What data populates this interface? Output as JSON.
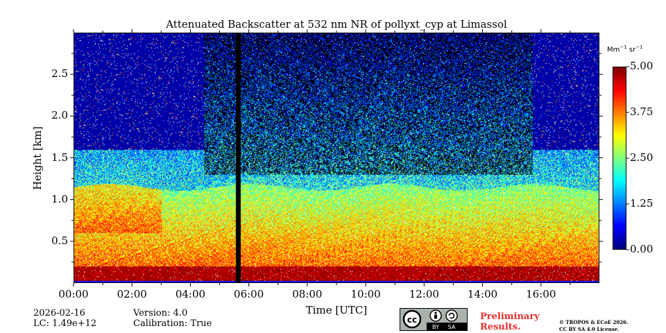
{
  "chart_data": {
    "type": "heatmap",
    "title": "Attenuated Backscatter at 532 nm NR of pollyxt_cyp at Limassol",
    "xlabel": "Time [UTC]",
    "ylabel": "Height [km]",
    "xlim_hours": [
      0,
      18
    ],
    "ylim_km": [
      0,
      3.0
    ],
    "xticks": [
      {
        "value": 0,
        "label": "00:00"
      },
      {
        "value": 2,
        "label": "02:00"
      },
      {
        "value": 4,
        "label": "04:00"
      },
      {
        "value": 6,
        "label": "06:00"
      },
      {
        "value": 8,
        "label": "08:00"
      },
      {
        "value": 10,
        "label": "10:00"
      },
      {
        "value": 12,
        "label": "12:00"
      },
      {
        "value": 14,
        "label": "14:00"
      },
      {
        "value": 16,
        "label": "16:00"
      }
    ],
    "yticks": [
      {
        "value": 0.5,
        "label": "0.5"
      },
      {
        "value": 1.0,
        "label": "1.0"
      },
      {
        "value": 1.5,
        "label": "1.5"
      },
      {
        "value": 2.0,
        "label": "2.0"
      },
      {
        "value": 2.5,
        "label": "2.5"
      }
    ],
    "colorbar": {
      "unit_base": "Mm",
      "unit_exp1": "−1",
      "unit_mid": "sr",
      "unit_exp2": "−1",
      "vmin": 0.0,
      "vmax": 5.0,
      "ticks": [
        {
          "value": 0.0,
          "label": "0.00"
        },
        {
          "value": 1.25,
          "label": "1.25"
        },
        {
          "value": 2.5,
          "label": "2.50"
        },
        {
          "value": 3.75,
          "label": "3.75"
        },
        {
          "value": 5.0,
          "label": "5.00"
        }
      ],
      "colormap": "jet"
    },
    "features": {
      "boundary_layer_top_km": 1.15,
      "strong_layer_km": [
        0.05,
        0.2
      ],
      "night_start_end_hours": [
        4.45,
        15.7
      ],
      "no_data_gap_hours": [
        5.55,
        5.72
      ]
    }
  },
  "meta": {
    "date": "2026-02-16",
    "lc": "LC: 1.49e+12",
    "version": "Version: 4.0",
    "calibration": "Calibration: True"
  },
  "license_badge": {
    "cc": "cc",
    "by": "BY",
    "sa": "SA"
  },
  "preliminary": {
    "line1": "Preliminary",
    "line2": "Results."
  },
  "copyright": {
    "line1": "© TROPOS & ECoE 2026.",
    "line2": "CC BY SA 4.0 License."
  }
}
